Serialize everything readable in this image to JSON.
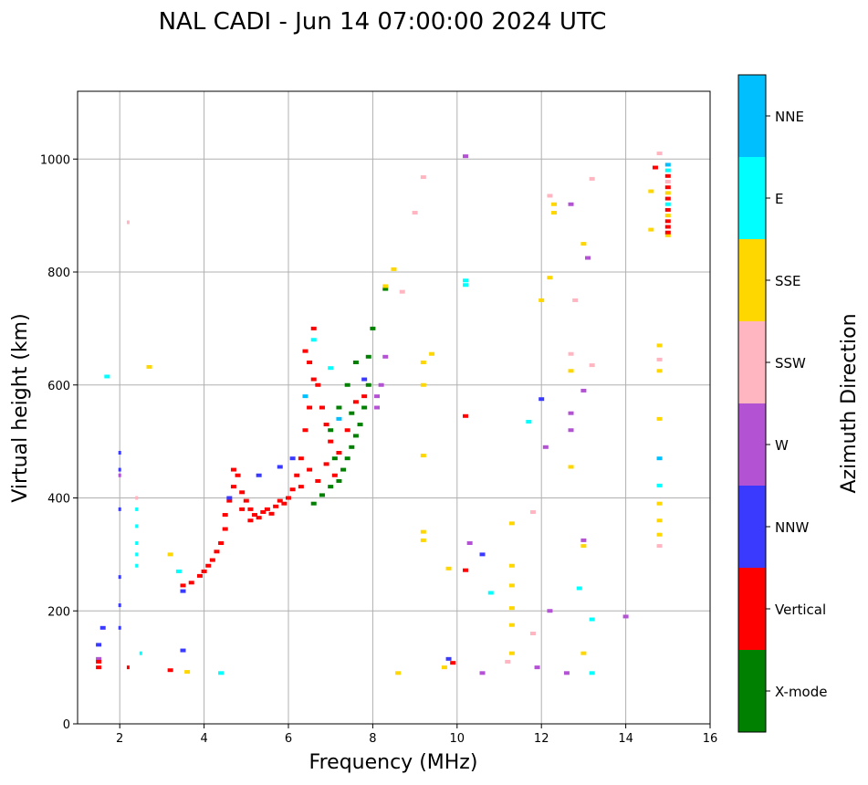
{
  "chart_data": {
    "type": "scatter",
    "title": "NAL CADI - Jun 14 07:00:00 2024 UTC",
    "xlabel": "Frequency (MHz)",
    "ylabel": "Virtual height (km)",
    "xlim": [
      1,
      16
    ],
    "ylim": [
      0,
      1120
    ],
    "xticks": [
      2,
      4,
      6,
      8,
      10,
      12,
      14,
      16
    ],
    "yticks": [
      0,
      200,
      400,
      600,
      800,
      1000
    ],
    "grid": true,
    "colorbar": {
      "label": "Azimuth Direction",
      "categories": [
        "X-mode",
        "Vertical",
        "NNW",
        "W",
        "SSW",
        "SSE",
        "E",
        "NNE"
      ],
      "colors": [
        "#008000",
        "#ff0000",
        "#3a3aff",
        "#b452d4",
        "#ffb6c1",
        "#ffd700",
        "#00ffff",
        "#00bfff"
      ]
    },
    "points_format": [
      "frequency_mhz",
      "height_km",
      "category_index"
    ],
    "points": [
      [
        3.5,
        245,
        1
      ],
      [
        3.7,
        250,
        1
      ],
      [
        3.9,
        262,
        1
      ],
      [
        4.0,
        270,
        1
      ],
      [
        4.1,
        280,
        1
      ],
      [
        4.2,
        290,
        1
      ],
      [
        4.3,
        305,
        1
      ],
      [
        4.4,
        320,
        1
      ],
      [
        4.5,
        345,
        1
      ],
      [
        4.5,
        370,
        1
      ],
      [
        4.6,
        395,
        1
      ],
      [
        4.7,
        420,
        1
      ],
      [
        4.7,
        450,
        1
      ],
      [
        4.8,
        440,
        1
      ],
      [
        4.9,
        410,
        1
      ],
      [
        5.0,
        395,
        1
      ],
      [
        5.1,
        380,
        1
      ],
      [
        5.2,
        370,
        1
      ],
      [
        5.3,
        365,
        1
      ],
      [
        5.4,
        375,
        1
      ],
      [
        5.5,
        380,
        1
      ],
      [
        5.6,
        372,
        1
      ],
      [
        5.7,
        385,
        1
      ],
      [
        5.8,
        395,
        1
      ],
      [
        5.9,
        390,
        1
      ],
      [
        6.0,
        400,
        1
      ],
      [
        6.1,
        415,
        1
      ],
      [
        6.2,
        440,
        1
      ],
      [
        6.3,
        470,
        1
      ],
      [
        6.4,
        520,
        1
      ],
      [
        6.5,
        560,
        1
      ],
      [
        6.5,
        640,
        1
      ],
      [
        6.6,
        700,
        1
      ],
      [
        6.7,
        600,
        1
      ],
      [
        6.8,
        560,
        1
      ],
      [
        6.9,
        530,
        1
      ],
      [
        7.0,
        500,
        1
      ],
      [
        7.2,
        480,
        1
      ],
      [
        7.4,
        520,
        1
      ],
      [
        7.6,
        570,
        1
      ],
      [
        7.8,
        580,
        1
      ],
      [
        6.5,
        450,
        1
      ],
      [
        6.7,
        430,
        1
      ],
      [
        6.9,
        460,
        1
      ],
      [
        7.1,
        440,
        1
      ],
      [
        4.9,
        380,
        1
      ],
      [
        5.1,
        360,
        1
      ],
      [
        6.3,
        420,
        1
      ],
      [
        6.6,
        610,
        1
      ],
      [
        6.4,
        660,
        1
      ],
      [
        6.6,
        390,
        0
      ],
      [
        6.8,
        405,
        0
      ],
      [
        7.0,
        420,
        0
      ],
      [
        7.2,
        430,
        0
      ],
      [
        7.3,
        450,
        0
      ],
      [
        7.4,
        470,
        0
      ],
      [
        7.5,
        490,
        0
      ],
      [
        7.6,
        510,
        0
      ],
      [
        7.7,
        530,
        0
      ],
      [
        7.8,
        560,
        0
      ],
      [
        7.9,
        600,
        0
      ],
      [
        7.9,
        650,
        0
      ],
      [
        8.0,
        700,
        0
      ],
      [
        7.6,
        640,
        0
      ],
      [
        7.4,
        600,
        0
      ],
      [
        7.2,
        560,
        0
      ],
      [
        7.0,
        520,
        0
      ],
      [
        8.3,
        770,
        0
      ],
      [
        7.1,
        470,
        0
      ],
      [
        7.5,
        550,
        0
      ],
      [
        3.5,
        235,
        2
      ],
      [
        4.6,
        400,
        2
      ],
      [
        5.3,
        440,
        2
      ],
      [
        5.8,
        455,
        2
      ],
      [
        6.1,
        470,
        2
      ],
      [
        7.8,
        610,
        2
      ],
      [
        2.0,
        480,
        2
      ],
      [
        2.0,
        450,
        2
      ],
      [
        1.5,
        140,
        2
      ],
      [
        2.0,
        380,
        2
      ],
      [
        2.0,
        260,
        2
      ],
      [
        2.0,
        210,
        2
      ],
      [
        2.0,
        170,
        2
      ],
      [
        1.6,
        170,
        2
      ],
      [
        3.5,
        130,
        2
      ],
      [
        10.6,
        300,
        2
      ],
      [
        12.0,
        575,
        2
      ],
      [
        9.8,
        115,
        2
      ],
      [
        8.1,
        580,
        3
      ],
      [
        8.1,
        560,
        3
      ],
      [
        8.2,
        600,
        3
      ],
      [
        13.0,
        590,
        3
      ],
      [
        12.7,
        550,
        3
      ],
      [
        12.7,
        520,
        3
      ],
      [
        10.2,
        1005,
        3
      ],
      [
        12.7,
        920,
        3
      ],
      [
        13.1,
        825,
        3
      ],
      [
        10.6,
        90,
        3
      ],
      [
        12.6,
        90,
        3
      ],
      [
        14.0,
        190,
        3
      ],
      [
        12.2,
        200,
        3
      ],
      [
        12.1,
        490,
        3
      ],
      [
        10.3,
        320,
        3
      ],
      [
        11.9,
        100,
        3
      ],
      [
        8.3,
        650,
        3
      ],
      [
        13.0,
        325,
        3
      ],
      [
        2.0,
        440,
        3
      ],
      [
        1.5,
        115,
        3
      ],
      [
        8.7,
        765,
        4
      ],
      [
        2.2,
        888,
        4
      ],
      [
        9.2,
        968,
        4
      ],
      [
        12.8,
        750,
        4
      ],
      [
        12.7,
        655,
        4
      ],
      [
        13.2,
        635,
        4
      ],
      [
        14.8,
        1010,
        4
      ],
      [
        14.8,
        645,
        4
      ],
      [
        14.8,
        315,
        4
      ],
      [
        11.2,
        110,
        4
      ],
      [
        11.8,
        160,
        4
      ],
      [
        11.8,
        375,
        4
      ],
      [
        12.2,
        935,
        4
      ],
      [
        13.2,
        965,
        4
      ],
      [
        9.0,
        905,
        4
      ],
      [
        2.4,
        400,
        4
      ],
      [
        15.0,
        960,
        4
      ],
      [
        8.3,
        775,
        5
      ],
      [
        8.5,
        805,
        5
      ],
      [
        9.2,
        640,
        5
      ],
      [
        9.2,
        600,
        5
      ],
      [
        9.4,
        655,
        5
      ],
      [
        9.2,
        475,
        5
      ],
      [
        9.2,
        340,
        5
      ],
      [
        9.2,
        325,
        5
      ],
      [
        12.7,
        625,
        5
      ],
      [
        12.7,
        455,
        5
      ],
      [
        13.0,
        850,
        5
      ],
      [
        13.0,
        315,
        5
      ],
      [
        12.0,
        750,
        5
      ],
      [
        14.8,
        670,
        5
      ],
      [
        14.8,
        625,
        5
      ],
      [
        14.8,
        540,
        5
      ],
      [
        14.8,
        390,
        5
      ],
      [
        14.8,
        360,
        5
      ],
      [
        14.8,
        335,
        5
      ],
      [
        11.3,
        355,
        5
      ],
      [
        11.3,
        280,
        5
      ],
      [
        11.3,
        245,
        5
      ],
      [
        11.3,
        205,
        5
      ],
      [
        11.3,
        175,
        5
      ],
      [
        11.3,
        125,
        5
      ],
      [
        13.0,
        125,
        5
      ],
      [
        8.6,
        90,
        5
      ],
      [
        9.7,
        100,
        5
      ],
      [
        3.2,
        300,
        5
      ],
      [
        2.7,
        632,
        5
      ],
      [
        3.6,
        92,
        5
      ],
      [
        14.6,
        875,
        5
      ],
      [
        14.6,
        943,
        5
      ],
      [
        12.2,
        790,
        5
      ],
      [
        12.3,
        920,
        5
      ],
      [
        12.3,
        905,
        5
      ],
      [
        15.0,
        940,
        5
      ],
      [
        15.0,
        900,
        5
      ],
      [
        15.0,
        865,
        5
      ],
      [
        9.8,
        275,
        5
      ],
      [
        2.4,
        380,
        6
      ],
      [
        2.4,
        350,
        6
      ],
      [
        2.4,
        320,
        6
      ],
      [
        2.4,
        300,
        6
      ],
      [
        2.4,
        280,
        6
      ],
      [
        1.7,
        615,
        6
      ],
      [
        10.2,
        785,
        6
      ],
      [
        10.2,
        777,
        6
      ],
      [
        11.7,
        535,
        6
      ],
      [
        14.8,
        422,
        6
      ],
      [
        12.9,
        240,
        6
      ],
      [
        13.2,
        185,
        6
      ],
      [
        10.8,
        232,
        6
      ],
      [
        13.2,
        90,
        6
      ],
      [
        4.4,
        90,
        6
      ],
      [
        2.5,
        125,
        6
      ],
      [
        6.6,
        680,
        6
      ],
      [
        7.0,
        630,
        6
      ],
      [
        15.0,
        980,
        6
      ],
      [
        15.0,
        920,
        6
      ],
      [
        3.4,
        270,
        6
      ],
      [
        14.8,
        470,
        7
      ],
      [
        15.0,
        990,
        7
      ],
      [
        6.4,
        580,
        7
      ],
      [
        7.2,
        540,
        7
      ],
      [
        10.2,
        545,
        1
      ],
      [
        10.2,
        272,
        1
      ],
      [
        14.7,
        985,
        1
      ],
      [
        9.9,
        108,
        1
      ],
      [
        15.0,
        970,
        1
      ],
      [
        15.0,
        950,
        1
      ],
      [
        15.0,
        930,
        1
      ],
      [
        15.0,
        910,
        1
      ],
      [
        15.0,
        890,
        1
      ],
      [
        15.0,
        880,
        1
      ],
      [
        15.0,
        870,
        1
      ],
      [
        1.5,
        100,
        1
      ],
      [
        1.5,
        110,
        1
      ],
      [
        2.2,
        100,
        1
      ],
      [
        3.2,
        95,
        1
      ]
    ]
  }
}
